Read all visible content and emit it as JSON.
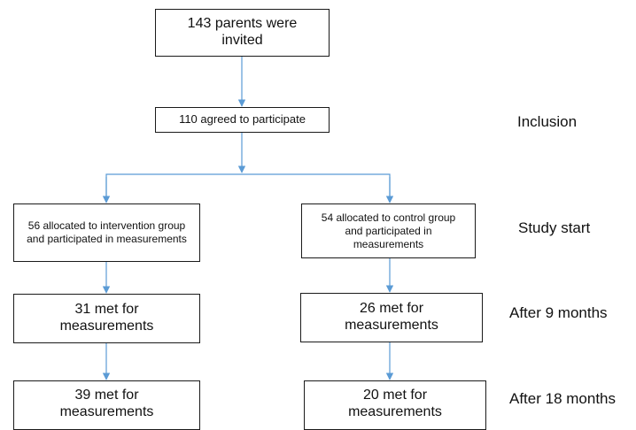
{
  "diagram": {
    "nodes": {
      "invited": "143 parents were invited",
      "agreed": "110 agreed to participate",
      "intervention_start": "56 allocated to intervention group and participated in measurements",
      "control_start": "54 allocated to control group and participated in measurements",
      "intervention_9m": "31 met for measurements",
      "control_9m": "26 met for measurements",
      "intervention_18m": "39 met for measurements",
      "control_18m": "20 met for measurements"
    },
    "stages": {
      "inclusion": "Inclusion",
      "study_start": "Study start",
      "after_9": "After 9 months",
      "after_18": "After 18 months"
    },
    "connector_color": "#5b9bd5"
  }
}
